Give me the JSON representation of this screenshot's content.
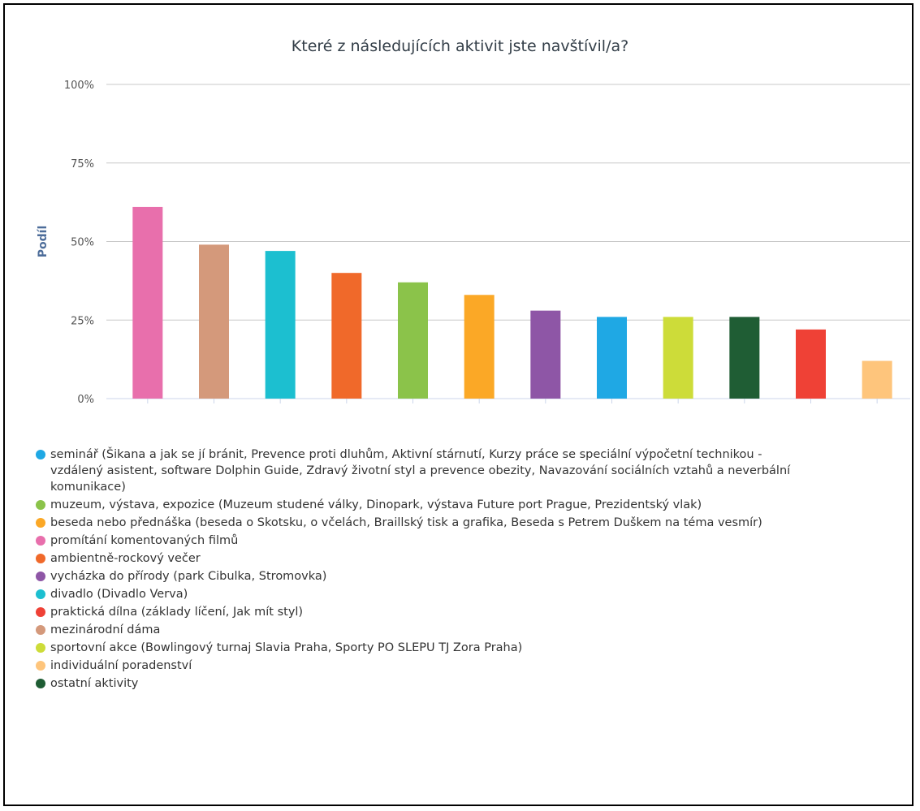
{
  "chart_data": {
    "type": "bar",
    "title": "Které z následujících aktivit jste navštívil/a?",
    "ylabel": "Podíl",
    "xlabel": "",
    "ylim": [
      0,
      100
    ],
    "yticks": [
      "0%",
      "25%",
      "50%",
      "75%",
      "100%"
    ],
    "ytick_values": [
      0,
      25,
      50,
      75,
      100
    ],
    "grid": true,
    "legend_position": "bottom",
    "categories": [
      "promítání komentovaných filmů",
      "mezinárodní dáma",
      "divadlo (Divadlo Verva)",
      "ambientně-rockový večer",
      "muzeum, výstava, expozice (Muzeum studené války, Dinopark, výstava Future port Prague, Prezidentský vlak)",
      "beseda nebo přednáška (beseda o Skotsku, o včelách, Braillský tisk a grafika, Beseda s Petrem Duškem na téma vesmír)",
      "vycházka do přírody (park Cibulka, Stromovka)",
      "seminář (Šikana a jak se jí bránit, Prevence proti dluhům, Aktivní stárnutí, Kurzy práce se speciální výpočetní technikou - vzdálený asistent, software Dolphin Guide, Zdravý životní styl a prevence obezity, Navazování sociálních vztahů a neverbální komunikace)",
      "sportovní akce (Bowlingový turnaj Slavia Praha, Sporty PO SLEPU TJ Zora Praha)",
      "ostatní aktivity",
      "praktická dílna (základy líčení, Jak mít styl)",
      "individuální poradenství"
    ],
    "values": [
      61,
      49,
      47,
      40,
      37,
      33,
      28,
      26,
      26,
      26,
      22,
      12
    ],
    "colors": [
      "#e86fac",
      "#d4997b",
      "#1cbfd0",
      "#f0692a",
      "#8bc34a",
      "#fba826",
      "#8e56a6",
      "#1fa8e4",
      "#cddc39",
      "#1f5d34",
      "#ef4136",
      "#fec57c"
    ],
    "legend": [
      {
        "label": "seminář (Šikana a jak se jí bránit, Prevence proti dluhům, Aktivní stárnutí, Kurzy práce se speciální výpočetní technikou - vzdálený asistent, software Dolphin Guide, Zdravý životní styl a prevence obezity, Navazování sociálních vztahů a neverbální komunikace)",
        "color": "#1fa8e4"
      },
      {
        "label": "muzeum, výstava, expozice (Muzeum studené války, Dinopark, výstava Future port Prague, Prezidentský vlak)",
        "color": "#8bc34a"
      },
      {
        "label": "beseda nebo přednáška (beseda o Skotsku, o včelách, Braillský tisk a grafika, Beseda s Petrem Duškem na téma vesmír)",
        "color": "#fba826"
      },
      {
        "label": "promítání komentovaných filmů",
        "color": "#e86fac"
      },
      {
        "label": "ambientně-rockový večer",
        "color": "#f0692a"
      },
      {
        "label": "vycházka do přírody (park Cibulka, Stromovka)",
        "color": "#8e56a6"
      },
      {
        "label": "divadlo (Divadlo Verva)",
        "color": "#1cbfd0"
      },
      {
        "label": "praktická dílna (základy líčení, Jak mít styl)",
        "color": "#ef4136"
      },
      {
        "label": "mezinárodní dáma",
        "color": "#d4997b"
      },
      {
        "label": "sportovní akce (Bowlingový turnaj Slavia Praha, Sporty PO SLEPU TJ Zora Praha)",
        "color": "#cddc39"
      },
      {
        "label": "individuální poradenství",
        "color": "#fec57c"
      },
      {
        "label": "ostatní aktivity",
        "color": "#1f5d34"
      }
    ]
  }
}
